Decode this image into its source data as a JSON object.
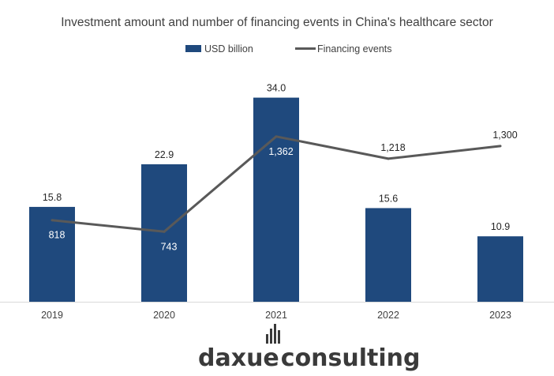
{
  "chart_data": {
    "type": "bar",
    "title": "Investment amount and number of financing events in China's healthcare sector",
    "categories": [
      "2019",
      "2020",
      "2021",
      "2022",
      "2023"
    ],
    "series": [
      {
        "name": "USD billion",
        "type": "bar",
        "values": [
          15.8,
          22.9,
          34.0,
          15.6,
          10.9
        ],
        "labels": [
          "15.8",
          "22.9",
          "34.0",
          "15.6",
          "10.9"
        ],
        "color": "#1f497d"
      },
      {
        "name": "Financing events",
        "type": "line",
        "values": [
          818,
          743,
          1362,
          1218,
          1300
        ],
        "labels": [
          "818",
          "743",
          "1,362",
          "1,218",
          "1,300"
        ],
        "color": "#595959"
      }
    ],
    "legend": "top-center",
    "grid": false
  },
  "branding": {
    "logo_left": "daxue",
    "logo_right": "consulting",
    "logo_color": "#3a3a3a",
    "accent_color": "#1f497d"
  }
}
